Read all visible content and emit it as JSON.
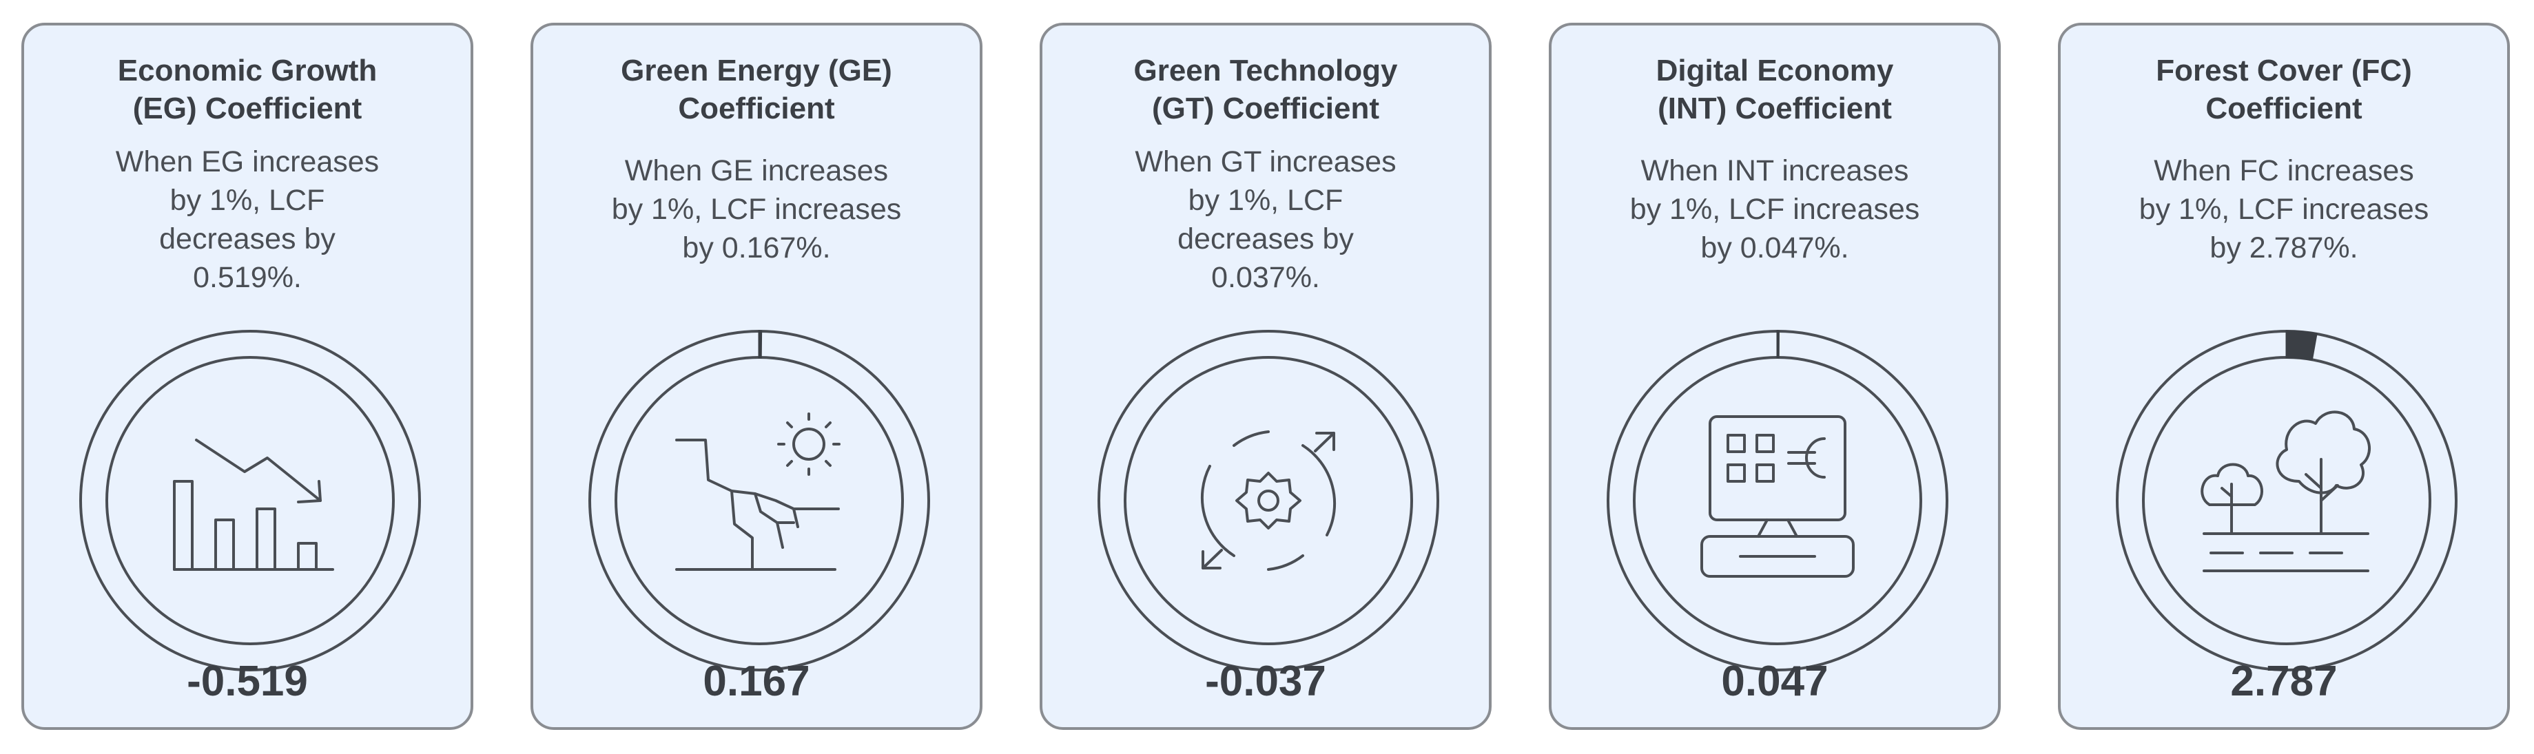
{
  "cards": [
    {
      "title": "Economic Growth\n(EG) Coefficient",
      "description": "When EG increases\nby 1%, LCF\ndecreases by\n0.519%.",
      "value": "-0.519",
      "icon": "declining-bar-chart-icon",
      "ring_fraction": 0
    },
    {
      "title": "Green Energy (GE)\nCoefficient",
      "description": "When GE increases\nby 1%, LCF increases\nby 0.167%.",
      "value": "0.167",
      "icon": "sun-cliff-icon",
      "ring_fraction": 0.0017
    },
    {
      "title": "Green Technology\n(GT) Coefficient",
      "description": "When GT increases\nby 1%, LCF\ndecreases by\n0.037%.",
      "value": "-0.037",
      "icon": "gear-cycle-icon",
      "ring_fraction": 0
    },
    {
      "title": "Digital Economy\n(INT) Coefficient",
      "description": "When INT increases\nby 1%, LCF increases\nby 0.047%.",
      "value": "0.047",
      "icon": "computer-euro-icon",
      "ring_fraction": 0.0005
    },
    {
      "title": "Forest Cover (FC)\nCoefficient",
      "description": "When FC increases\nby 1%, LCF increases\nby 2.787%.",
      "value": "2.787",
      "icon": "trees-icon",
      "ring_fraction": 0.028
    }
  ],
  "colors": {
    "card_background": "#eaf2fd",
    "card_border": "#8a8d92",
    "text": "#3b3f45",
    "ring": "#4a4e54",
    "ring_fill": "#3b3f45"
  }
}
